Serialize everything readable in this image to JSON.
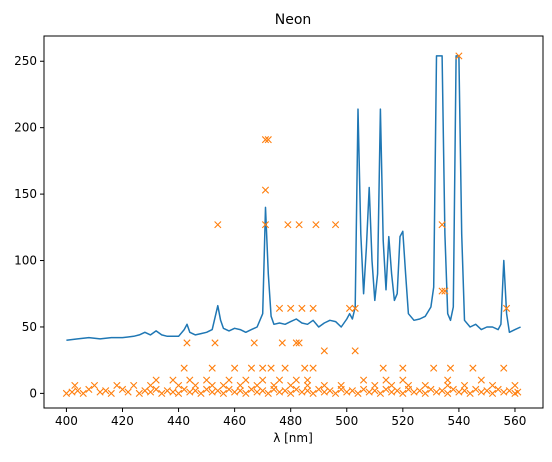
{
  "chart_data": {
    "type": "line",
    "title": "Neon",
    "xlabel": "λ [nm]",
    "ylabel": "",
    "xlim": [
      392,
      570
    ],
    "ylim": [
      -11,
      269
    ],
    "xticks": [
      400,
      420,
      440,
      460,
      480,
      500,
      520,
      540,
      560
    ],
    "yticks": [
      0,
      50,
      100,
      150,
      200,
      250
    ],
    "grid": false,
    "series": [
      {
        "marker": "line",
        "color": "#1f77b4",
        "x": [
          400,
          404,
          408,
          412,
          416,
          420,
          424,
          426,
          428,
          430,
          432,
          434,
          436,
          440,
          442,
          443,
          444,
          446,
          448,
          450,
          452,
          454,
          455,
          456,
          458,
          460,
          462,
          464,
          466,
          468,
          470,
          471,
          472,
          473,
          474,
          476,
          478,
          480,
          482,
          484,
          486,
          488,
          490,
          492,
          494,
          496,
          498,
          500,
          501,
          502,
          503,
          504,
          505,
          506,
          507,
          508,
          509,
          510,
          511,
          512,
          513,
          514,
          515,
          516,
          517,
          518,
          519,
          520,
          521,
          522,
          524,
          526,
          528,
          530,
          531,
          532,
          533,
          534,
          535,
          536,
          537,
          538,
          539,
          540,
          541,
          542,
          544,
          546,
          548,
          550,
          552,
          554,
          555,
          556,
          557,
          558,
          560,
          562
        ],
        "y": [
          40,
          41,
          42,
          41,
          42,
          42,
          43,
          44,
          46,
          44,
          47,
          44,
          43,
          43,
          48,
          52,
          46,
          44,
          45,
          46,
          48,
          66,
          55,
          49,
          47,
          49,
          48,
          46,
          48,
          50,
          60,
          140,
          90,
          58,
          52,
          53,
          52,
          54,
          56,
          53,
          52,
          55,
          50,
          53,
          55,
          54,
          50,
          56,
          60,
          56,
          65,
          214,
          120,
          75,
          110,
          155,
          100,
          70,
          90,
          214,
          115,
          78,
          118,
          90,
          70,
          75,
          118,
          122,
          90,
          60,
          55,
          56,
          58,
          65,
          80,
          254,
          254,
          254,
          120,
          60,
          55,
          65,
          254,
          254,
          120,
          55,
          50,
          52,
          48,
          50,
          50,
          48,
          52,
          100,
          60,
          46,
          48,
          50
        ]
      },
      {
        "marker": "x",
        "color": "#ff7f0e",
        "x": [
          471,
          472,
          471,
          471,
          454,
          479,
          483,
          489,
          496,
          534,
          540,
          476,
          480,
          484,
          488,
          501,
          503,
          534,
          535,
          557,
          443,
          453,
          467,
          477,
          482,
          483,
          492,
          503,
          442,
          452,
          460,
          466,
          470,
          473,
          478,
          485,
          488,
          513,
          520,
          531,
          537,
          545,
          556,
          432,
          438,
          444,
          450,
          458,
          464,
          470,
          476,
          482,
          486,
          506,
          514,
          520,
          536,
          548,
          403,
          410,
          418,
          424,
          430,
          440,
          446,
          452,
          456,
          462,
          468,
          474,
          480,
          486,
          492,
          498,
          510,
          516,
          522,
          528,
          536,
          542,
          552,
          560,
          400,
          402,
          404,
          406,
          408,
          412,
          414,
          416,
          420,
          422,
          426,
          428,
          430,
          432,
          434,
          436,
          438,
          440,
          442,
          444,
          446,
          448,
          450,
          452,
          454,
          456,
          458,
          460,
          462,
          464,
          466,
          468,
          470,
          472,
          474,
          476,
          478,
          480,
          482,
          484,
          486,
          488,
          490,
          492,
          494,
          496,
          498,
          500,
          502,
          504,
          506,
          508,
          510,
          512,
          514,
          516,
          518,
          520,
          522,
          524,
          526,
          528,
          530,
          532,
          534,
          536,
          538,
          540,
          542,
          544,
          546,
          548,
          550,
          552,
          554,
          556,
          558,
          560,
          561
        ],
        "y": [
          191,
          191,
          153,
          127,
          127,
          127,
          127,
          127,
          127,
          127,
          254,
          64,
          64,
          64,
          64,
          64,
          64,
          77,
          77,
          64,
          38,
          38,
          38,
          38,
          38,
          38,
          32,
          32,
          19,
          19,
          19,
          19,
          19,
          19,
          19,
          19,
          19,
          19,
          19,
          19,
          19,
          19,
          19,
          10,
          10,
          10,
          10,
          10,
          10,
          10,
          10,
          10,
          10,
          10,
          10,
          10,
          10,
          10,
          6,
          6,
          6,
          6,
          6,
          6,
          6,
          6,
          6,
          6,
          6,
          6,
          6,
          6,
          6,
          6,
          6,
          6,
          6,
          6,
          6,
          6,
          6,
          6,
          0,
          1,
          2,
          0,
          3,
          1,
          2,
          0,
          3,
          1,
          0,
          2,
          1,
          3,
          0,
          2,
          1,
          0,
          3,
          1,
          2,
          0,
          3,
          1,
          2,
          0,
          3,
          1,
          2,
          0,
          3,
          1,
          2,
          0,
          3,
          1,
          2,
          0,
          3,
          1,
          2,
          0,
          3,
          1,
          2,
          0,
          3,
          1,
          2,
          0,
          3,
          1,
          2,
          0,
          3,
          1,
          2,
          0,
          3,
          1,
          2,
          0,
          3,
          1,
          2,
          0,
          3,
          1,
          2,
          0,
          3,
          1,
          2,
          0,
          3,
          1,
          2,
          0,
          1
        ]
      }
    ]
  }
}
